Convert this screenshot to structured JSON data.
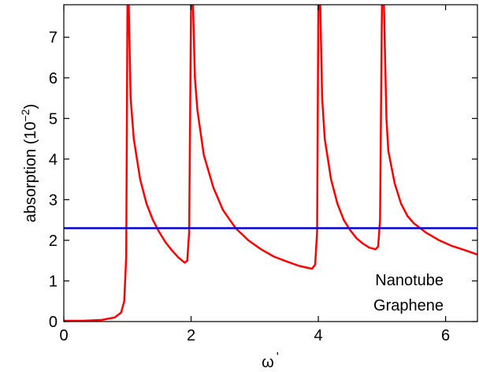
{
  "chart_data": {
    "type": "line",
    "xlabel": "ω",
    "xlabel_suffix": "'",
    "ylabel": "absorption (10",
    "ylabel_exp": "−2",
    "ylabel_close": ")",
    "xlim": [
      0,
      6.5
    ],
    "ylim": [
      0,
      7.8
    ],
    "x_ticks": [
      0,
      2,
      4,
      6
    ],
    "y_ticks": [
      0,
      1,
      2,
      3,
      4,
      5,
      6,
      7
    ],
    "grid": false,
    "legend_position": "bottom-right",
    "series": [
      {
        "name": "Nanotube",
        "color": "#ff0000",
        "points": [
          [
            0.0,
            0.02
          ],
          [
            0.3,
            0.02
          ],
          [
            0.6,
            0.04
          ],
          [
            0.8,
            0.1
          ],
          [
            0.9,
            0.22
          ],
          [
            0.95,
            0.5
          ],
          [
            0.98,
            1.6
          ],
          [
            1.0,
            7.8
          ],
          [
            1.02,
            7.8
          ],
          [
            1.05,
            5.5
          ],
          [
            1.1,
            4.5
          ],
          [
            1.2,
            3.5
          ],
          [
            1.3,
            2.9
          ],
          [
            1.4,
            2.5
          ],
          [
            1.5,
            2.2
          ],
          [
            1.6,
            1.95
          ],
          [
            1.7,
            1.75
          ],
          [
            1.8,
            1.58
          ],
          [
            1.9,
            1.45
          ],
          [
            1.94,
            1.5
          ],
          [
            1.97,
            2.2
          ],
          [
            2.0,
            7.8
          ],
          [
            2.03,
            7.8
          ],
          [
            2.06,
            6.0
          ],
          [
            2.1,
            5.2
          ],
          [
            2.2,
            4.1
          ],
          [
            2.35,
            3.3
          ],
          [
            2.5,
            2.75
          ],
          [
            2.7,
            2.3
          ],
          [
            2.9,
            2.0
          ],
          [
            3.1,
            1.78
          ],
          [
            3.3,
            1.6
          ],
          [
            3.5,
            1.48
          ],
          [
            3.7,
            1.37
          ],
          [
            3.9,
            1.3
          ],
          [
            3.95,
            1.4
          ],
          [
            3.98,
            2.2
          ],
          [
            4.0,
            7.8
          ],
          [
            4.03,
            7.8
          ],
          [
            4.06,
            5.5
          ],
          [
            4.1,
            4.5
          ],
          [
            4.2,
            3.5
          ],
          [
            4.3,
            2.9
          ],
          [
            4.4,
            2.5
          ],
          [
            4.5,
            2.25
          ],
          [
            4.6,
            2.05
          ],
          [
            4.7,
            1.92
          ],
          [
            4.8,
            1.82
          ],
          [
            4.9,
            1.78
          ],
          [
            4.94,
            1.85
          ],
          [
            4.97,
            2.5
          ],
          [
            5.0,
            7.8
          ],
          [
            5.03,
            7.8
          ],
          [
            5.07,
            5.0
          ],
          [
            5.1,
            4.2
          ],
          [
            5.2,
            3.4
          ],
          [
            5.3,
            2.9
          ],
          [
            5.4,
            2.6
          ],
          [
            5.5,
            2.42
          ],
          [
            5.7,
            2.18
          ],
          [
            5.9,
            2.0
          ],
          [
            6.1,
            1.86
          ],
          [
            6.3,
            1.76
          ],
          [
            6.5,
            1.65
          ]
        ]
      },
      {
        "name": "Graphene",
        "color": "#0000dd",
        "points": [
          [
            0,
            2.3
          ],
          [
            6.5,
            2.3
          ]
        ]
      }
    ]
  }
}
